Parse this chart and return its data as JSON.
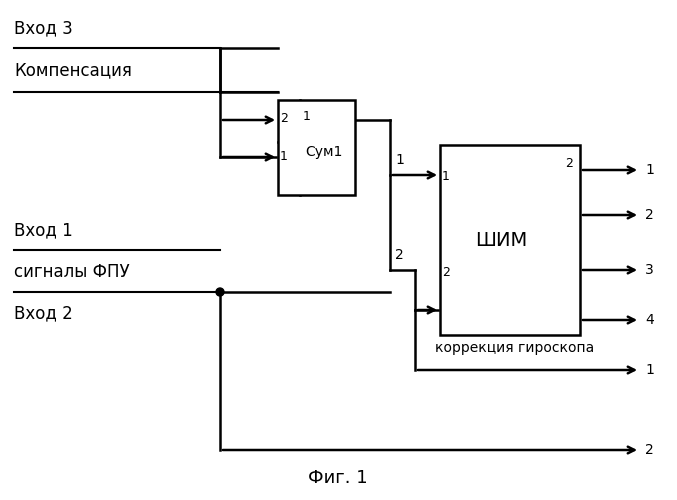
{
  "background_color": "#ffffff",
  "text_color": "#000000",
  "line_color": "#000000",
  "fig_width": 6.77,
  "fig_height": 5.0,
  "dpi": 100,
  "labels": {
    "vhod3": "Вход 3",
    "kompensacia": "Компенсация",
    "vhod1": "Вход 1",
    "signaly": "сигналы ФПУ",
    "vhod2": "Вход 2",
    "korrekciya": "коррекция гироскопа",
    "shim": "ШИМ",
    "sum": "Сум1",
    "fig": "Фиг. 1"
  }
}
